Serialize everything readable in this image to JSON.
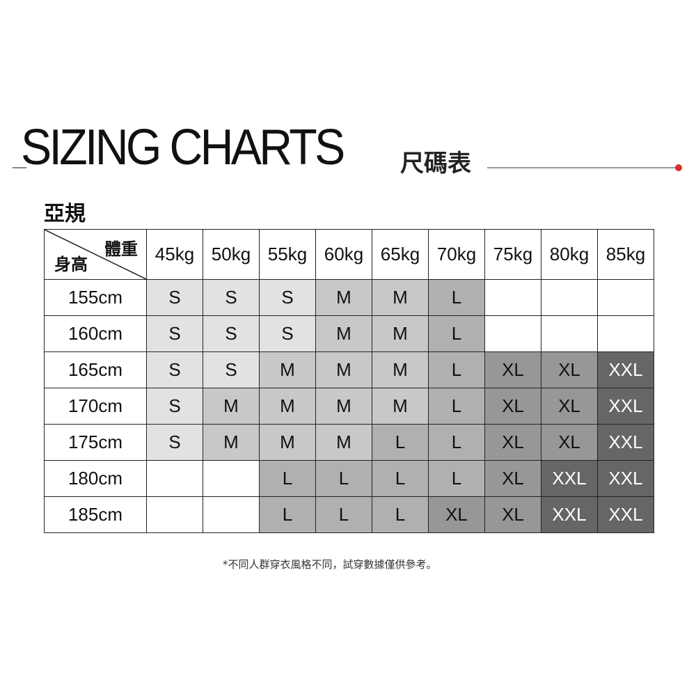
{
  "title": "SIZING CHARTS",
  "subtitle": "尺碼表",
  "accent_color": "#d8302a",
  "section": "亞規",
  "table": {
    "corner_weight": "體重",
    "corner_height": "身高",
    "columns": [
      "45kg",
      "50kg",
      "55kg",
      "60kg",
      "65kg",
      "70kg",
      "75kg",
      "80kg",
      "85kg"
    ],
    "rows": [
      {
        "height": "155cm",
        "sizes": [
          "S",
          "S",
          "S",
          "M",
          "M",
          "L",
          "",
          "",
          ""
        ]
      },
      {
        "height": "160cm",
        "sizes": [
          "S",
          "S",
          "S",
          "M",
          "M",
          "L",
          "",
          "",
          ""
        ]
      },
      {
        "height": "165cm",
        "sizes": [
          "S",
          "S",
          "M",
          "M",
          "M",
          "L",
          "XL",
          "XL",
          "XXL"
        ]
      },
      {
        "height": "170cm",
        "sizes": [
          "S",
          "M",
          "M",
          "M",
          "M",
          "L",
          "XL",
          "XL",
          "XXL"
        ]
      },
      {
        "height": "175cm",
        "sizes": [
          "S",
          "M",
          "M",
          "M",
          "L",
          "L",
          "XL",
          "XL",
          "XXL"
        ]
      },
      {
        "height": "180cm",
        "sizes": [
          "",
          "",
          "L",
          "L",
          "L",
          "L",
          "XL",
          "XXL",
          "XXL"
        ]
      },
      {
        "height": "185cm",
        "sizes": [
          "",
          "",
          "L",
          "L",
          "L",
          "XL",
          "XL",
          "XXL",
          "XXL"
        ]
      }
    ],
    "size_colors": {
      "S": "#e2e2e2",
      "M": "#c8c8c8",
      "L": "#b0b0b0",
      "XL": "#979797",
      "XXL": "#666666"
    }
  },
  "note": "*不同人群穿衣風格不同，試穿數據僅供參考。"
}
